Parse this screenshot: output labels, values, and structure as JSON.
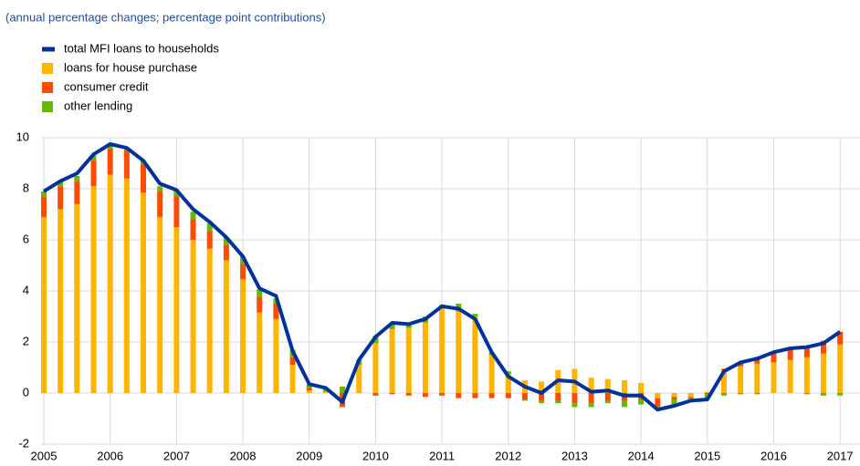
{
  "chart_data": {
    "type": "stacked_bar_line",
    "subtitle": "(annual percentage changes; percentage point contributions)",
    "categories": [
      "2005",
      null,
      null,
      null,
      "2006",
      null,
      null,
      null,
      "2007",
      null,
      null,
      null,
      "2008",
      null,
      null,
      null,
      "2009",
      null,
      null,
      null,
      "2010",
      null,
      null,
      null,
      "2011",
      null,
      null,
      null,
      "2012",
      null,
      null,
      null,
      "2013",
      null,
      null,
      null,
      "2014",
      null,
      null,
      null,
      "2015",
      null,
      null,
      null,
      "2016",
      null,
      null,
      null,
      "2017"
    ],
    "series": [
      {
        "name": "total MFI loans to households",
        "kind": "line",
        "color": "#003299",
        "values": [
          7.9,
          8.3,
          8.6,
          9.35,
          9.75,
          9.6,
          9.1,
          8.2,
          7.95,
          7.2,
          6.7,
          6.1,
          5.35,
          4.1,
          3.8,
          1.65,
          0.35,
          0.2,
          -0.35,
          1.3,
          2.2,
          2.75,
          2.7,
          2.9,
          3.4,
          3.3,
          2.9,
          1.6,
          0.65,
          0.25,
          0.0,
          0.5,
          0.45,
          0.05,
          0.1,
          -0.1,
          -0.1,
          -0.65,
          -0.5,
          -0.3,
          -0.25,
          0.85,
          1.2,
          1.35,
          1.6,
          1.75,
          1.8,
          1.95,
          2.4
        ]
      },
      {
        "name": "loans for house purchase",
        "kind": "bar",
        "color": "#ffb400",
        "values": [
          6.9,
          7.2,
          7.4,
          8.1,
          8.55,
          8.4,
          7.85,
          6.9,
          6.5,
          6.0,
          5.65,
          5.2,
          4.45,
          3.15,
          2.9,
          1.1,
          0.1,
          0.05,
          0.0,
          1.1,
          1.95,
          2.5,
          2.55,
          2.75,
          3.3,
          3.2,
          3.0,
          1.5,
          0.75,
          0.5,
          0.45,
          0.9,
          0.95,
          0.6,
          0.55,
          0.5,
          0.4,
          -0.2,
          -0.15,
          -0.15,
          0.05,
          0.9,
          1.05,
          1.15,
          1.2,
          1.3,
          1.4,
          1.55,
          1.9
        ]
      },
      {
        "name": "consumer credit",
        "kind": "bar",
        "color": "#ff4b00",
        "values": [
          0.8,
          0.9,
          0.9,
          1.0,
          1.0,
          1.1,
          1.1,
          1.0,
          1.2,
          0.8,
          0.7,
          0.6,
          0.6,
          0.6,
          0.6,
          0.3,
          0.1,
          0.0,
          -0.55,
          0.0,
          -0.1,
          -0.05,
          -0.1,
          -0.15,
          -0.1,
          -0.2,
          -0.2,
          -0.2,
          -0.2,
          -0.25,
          -0.3,
          -0.3,
          -0.4,
          -0.4,
          -0.3,
          -0.3,
          -0.25,
          -0.3,
          -0.1,
          -0.05,
          -0.05,
          0.05,
          0.15,
          0.2,
          0.35,
          0.4,
          0.4,
          0.5,
          0.5
        ]
      },
      {
        "name": "other lending",
        "kind": "bar",
        "color": "#65b800",
        "values": [
          0.2,
          0.2,
          0.2,
          0.2,
          0.15,
          0.1,
          0.15,
          0.2,
          0.25,
          0.3,
          0.3,
          0.3,
          0.3,
          0.3,
          0.2,
          0.3,
          0.15,
          0.1,
          0.25,
          0.2,
          0.3,
          0.25,
          0.2,
          0.25,
          0.15,
          0.3,
          0.1,
          0.1,
          0.1,
          -0.05,
          -0.1,
          -0.1,
          -0.15,
          -0.15,
          -0.1,
          -0.25,
          -0.2,
          -0.1,
          -0.2,
          -0.1,
          -0.15,
          -0.1,
          -0.05,
          -0.05,
          0.05,
          0.05,
          -0.05,
          -0.1,
          -0.1
        ]
      }
    ],
    "ylim": [
      -2,
      10
    ],
    "yticks": [
      -2,
      0,
      2,
      4,
      6,
      8,
      10
    ],
    "grid": true
  }
}
